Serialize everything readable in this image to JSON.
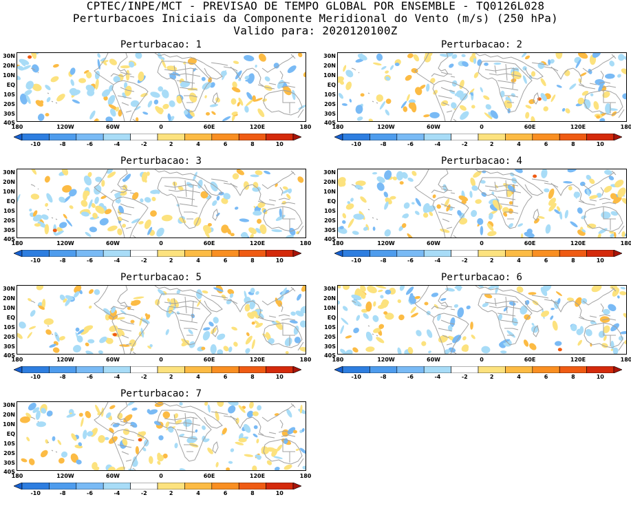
{
  "header": {
    "line1": "CPTEC/INPE/MCT - PREVISAO DE TEMPO GLOBAL POR ENSEMBLE - TQ0126L028",
    "line2": "Perturbacoes Iniciais da Componente Meridional do Vento (m/s) (250 hPa)",
    "line3": "Valido para: 2020120100Z"
  },
  "panels": [
    {
      "title": "Perturbacao: 1",
      "seed": 11
    },
    {
      "title": "Perturbacao: 2",
      "seed": 23
    },
    {
      "title": "Perturbacao: 3",
      "seed": 37
    },
    {
      "title": "Perturbacao: 4",
      "seed": 41
    },
    {
      "title": "Perturbacao: 5",
      "seed": 53
    },
    {
      "title": "Perturbacao: 6",
      "seed": 67
    },
    {
      "title": "Perturbacao: 7",
      "seed": 79
    }
  ],
  "lat_labels": [
    "30N",
    "20N",
    "10N",
    "EQ",
    "10S",
    "20S",
    "30S",
    "40S"
  ],
  "lon_labels": [
    "180",
    "120W",
    "60W",
    "0",
    "60E",
    "120E",
    "180"
  ],
  "colorbar": {
    "labels": [
      "-10",
      "-8",
      "-6",
      "-4",
      "-2",
      "2",
      "4",
      "6",
      "8",
      "10"
    ],
    "colors": [
      "#1660d0",
      "#2e7ee0",
      "#4e9ced",
      "#79baf5",
      "#a8dcf7",
      "#ffffff",
      "#fce27e",
      "#fcbb44",
      "#f98f22",
      "#ef5b13",
      "#d42a0b",
      "#a8140a"
    ]
  },
  "map_colors": {
    "coast": "#a0a0a0",
    "positive_weak": "#fce27e",
    "positive_mid": "#fcbb44",
    "positive_strong": "#ef5b13",
    "negative_weak": "#a8dcf7",
    "negative_mid": "#79baf5"
  }
}
